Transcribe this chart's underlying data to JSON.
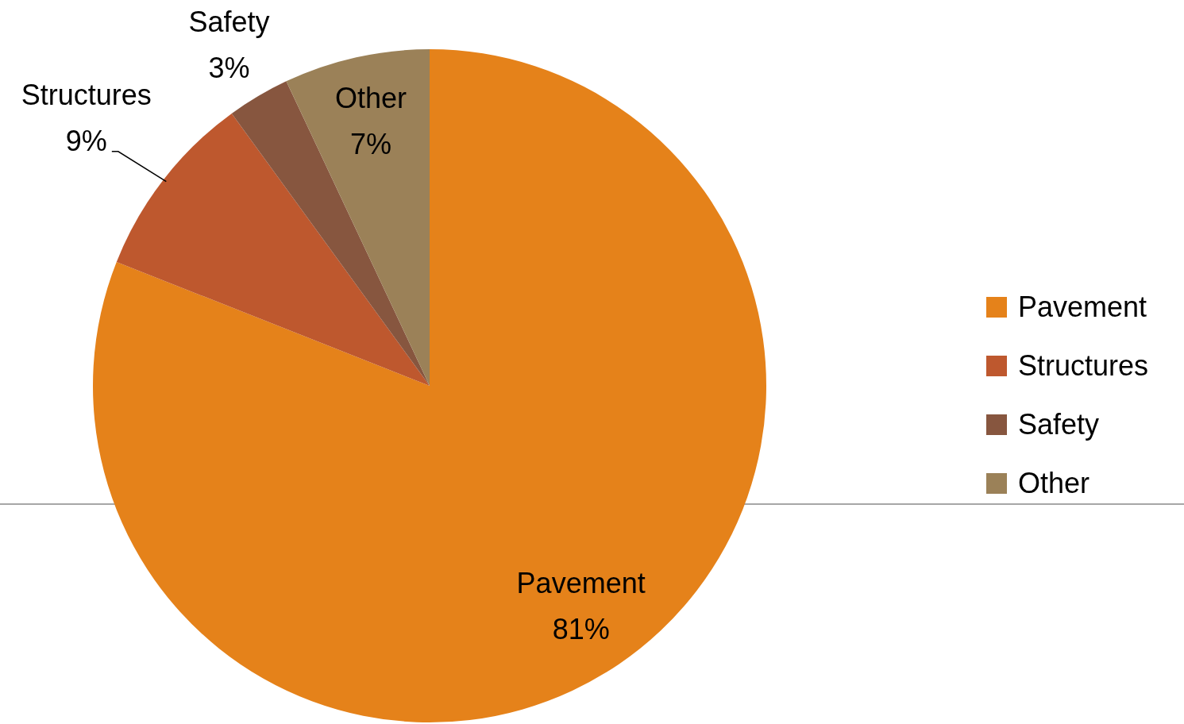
{
  "chart_data": {
    "type": "pie",
    "categories": [
      "Pavement",
      "Structures",
      "Safety",
      "Other"
    ],
    "values": [
      81,
      9,
      3,
      7
    ],
    "value_labels": [
      "81%",
      "9%",
      "3%",
      "7%"
    ],
    "colors": [
      "#e5821a",
      "#be582e",
      "#87563f",
      "#9b8158"
    ],
    "legend": "right"
  }
}
